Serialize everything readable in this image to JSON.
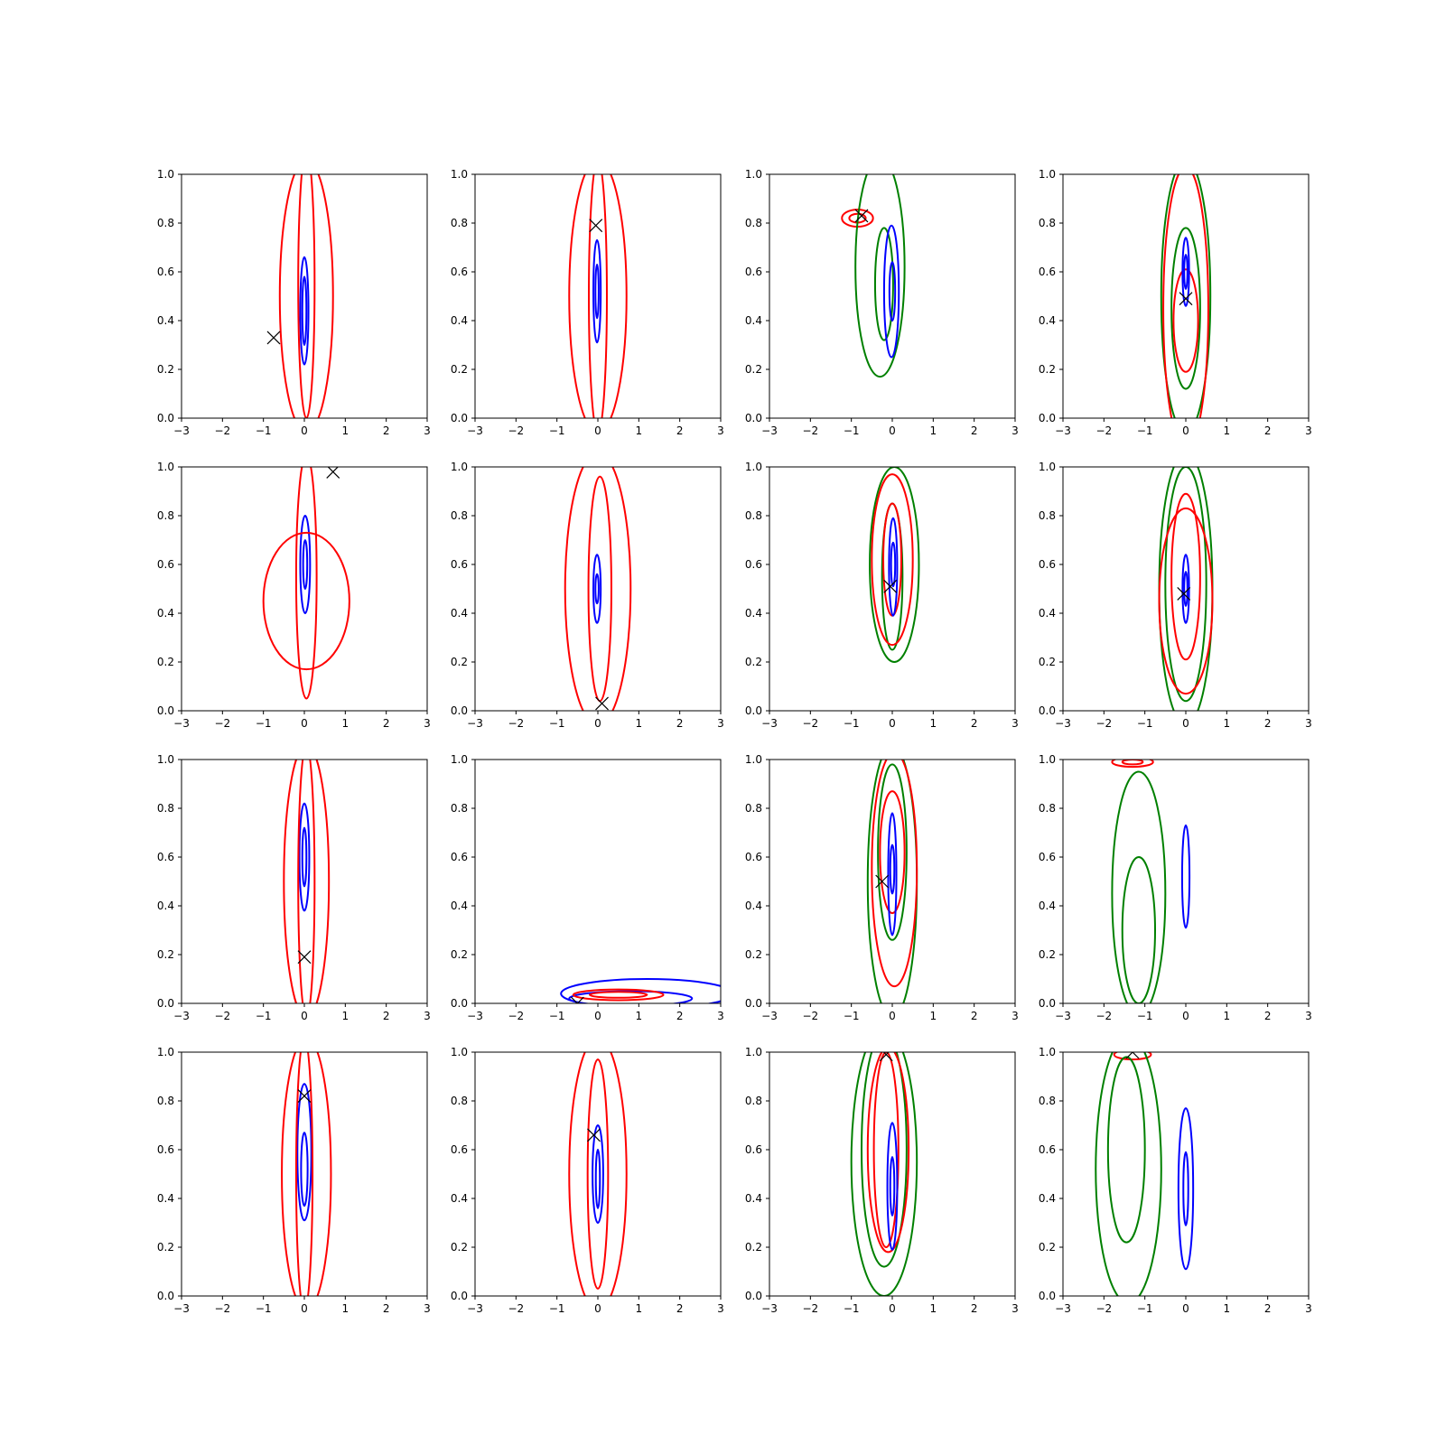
{
  "figure": {
    "rows": 4,
    "cols": 4,
    "series_colors": {
      "blue": "#0000ff",
      "red": "#ff0000",
      "green": "#008000",
      "marker": "#000000"
    }
  },
  "chart_data": {
    "type": "contour",
    "xlim": [
      -3,
      3
    ],
    "ylim": [
      0,
      1
    ],
    "xticks": [
      -3,
      -2,
      -1,
      0,
      1,
      2,
      3
    ],
    "xtick_labels": [
      "−3",
      "−2",
      "−1",
      "0",
      "1",
      "2",
      "3"
    ],
    "yticks": [
      0,
      0.2,
      0.4,
      0.6,
      0.8,
      1.0
    ],
    "ytick_labels": [
      "0.0",
      "0.2",
      "0.4",
      "0.6",
      "0.8",
      "1.0"
    ],
    "grid": false,
    "panels": [
      {
        "marker": [
          -0.75,
          0.33
        ],
        "contours": [
          {
            "color": "blue",
            "cx": 0.0,
            "cy": 0.44,
            "rx": 0.1,
            "ry": 0.22
          },
          {
            "color": "blue",
            "cx": 0.0,
            "cy": 0.44,
            "rx": 0.05,
            "ry": 0.14
          },
          {
            "color": "red",
            "cx": 0.05,
            "cy": 0.5,
            "rx": 0.65,
            "ry": 0.56
          },
          {
            "color": "red",
            "cx": 0.05,
            "cy": 0.55,
            "rx": 0.2,
            "ry": 0.55
          }
        ]
      },
      {
        "marker": [
          -0.05,
          0.79
        ],
        "contours": [
          {
            "color": "blue",
            "cx": -0.02,
            "cy": 0.52,
            "rx": 0.09,
            "ry": 0.21
          },
          {
            "color": "blue",
            "cx": -0.02,
            "cy": 0.52,
            "rx": 0.04,
            "ry": 0.11
          },
          {
            "color": "red",
            "cx": 0.0,
            "cy": 0.5,
            "rx": 0.7,
            "ry": 0.56
          },
          {
            "color": "red",
            "cx": 0.0,
            "cy": 0.5,
            "rx": 0.22,
            "ry": 0.56
          }
        ]
      },
      {
        "marker": [
          -0.75,
          0.83
        ],
        "contours": [
          {
            "color": "red",
            "cx": -0.85,
            "cy": 0.82,
            "rx": 0.38,
            "ry": 0.035
          },
          {
            "color": "red",
            "cx": -0.85,
            "cy": 0.82,
            "rx": 0.2,
            "ry": 0.018
          },
          {
            "color": "green",
            "cx": -0.3,
            "cy": 0.62,
            "rx": 0.6,
            "ry": 0.45
          },
          {
            "color": "green",
            "cx": -0.2,
            "cy": 0.55,
            "rx": 0.22,
            "ry": 0.23
          },
          {
            "color": "blue",
            "cx": -0.02,
            "cy": 0.52,
            "rx": 0.18,
            "ry": 0.27
          },
          {
            "color": "blue",
            "cx": 0.0,
            "cy": 0.52,
            "rx": 0.07,
            "ry": 0.12
          }
        ]
      },
      {
        "marker": [
          0.0,
          0.49
        ],
        "contours": [
          {
            "color": "green",
            "cx": 0.0,
            "cy": 0.5,
            "rx": 0.6,
            "ry": 0.56
          },
          {
            "color": "green",
            "cx": 0.0,
            "cy": 0.45,
            "rx": 0.35,
            "ry": 0.33
          },
          {
            "color": "red",
            "cx": 0.0,
            "cy": 0.45,
            "rx": 0.55,
            "ry": 0.58
          },
          {
            "color": "red",
            "cx": 0.0,
            "cy": 0.4,
            "rx": 0.3,
            "ry": 0.21
          },
          {
            "color": "blue",
            "cx": 0.0,
            "cy": 0.6,
            "rx": 0.08,
            "ry": 0.14
          },
          {
            "color": "blue",
            "cx": 0.0,
            "cy": 0.6,
            "rx": 0.04,
            "ry": 0.07
          }
        ]
      },
      {
        "marker": [
          0.7,
          0.98
        ],
        "contours": [
          {
            "color": "blue",
            "cx": 0.02,
            "cy": 0.6,
            "rx": 0.12,
            "ry": 0.2
          },
          {
            "color": "blue",
            "cx": 0.02,
            "cy": 0.6,
            "rx": 0.05,
            "ry": 0.1
          },
          {
            "color": "red",
            "cx": 0.05,
            "cy": 0.45,
            "rx": 1.05,
            "ry": 0.28
          },
          {
            "color": "red",
            "cx": 0.05,
            "cy": 0.55,
            "rx": 0.25,
            "ry": 0.5
          }
        ]
      },
      {
        "marker": [
          0.1,
          0.03
        ],
        "contours": [
          {
            "color": "blue",
            "cx": -0.02,
            "cy": 0.5,
            "rx": 0.09,
            "ry": 0.14
          },
          {
            "color": "blue",
            "cx": -0.02,
            "cy": 0.5,
            "rx": 0.04,
            "ry": 0.06
          },
          {
            "color": "red",
            "cx": 0.0,
            "cy": 0.5,
            "rx": 0.8,
            "ry": 0.56
          },
          {
            "color": "red",
            "cx": 0.05,
            "cy": 0.5,
            "rx": 0.28,
            "ry": 0.46
          }
        ]
      },
      {
        "marker": [
          -0.05,
          0.51
        ],
        "contours": [
          {
            "color": "green",
            "cx": 0.05,
            "cy": 0.6,
            "rx": 0.6,
            "ry": 0.4
          },
          {
            "color": "green",
            "cx": 0.0,
            "cy": 0.55,
            "rx": 0.25,
            "ry": 0.3
          },
          {
            "color": "red",
            "cx": 0.0,
            "cy": 0.62,
            "rx": 0.5,
            "ry": 0.35
          },
          {
            "color": "red",
            "cx": 0.0,
            "cy": 0.62,
            "rx": 0.22,
            "ry": 0.23
          },
          {
            "color": "blue",
            "cx": 0.02,
            "cy": 0.59,
            "rx": 0.1,
            "ry": 0.2
          },
          {
            "color": "blue",
            "cx": 0.02,
            "cy": 0.6,
            "rx": 0.05,
            "ry": 0.09
          }
        ]
      },
      {
        "marker": [
          -0.05,
          0.48
        ],
        "contours": [
          {
            "color": "green",
            "cx": 0.0,
            "cy": 0.5,
            "rx": 0.65,
            "ry": 0.56
          },
          {
            "color": "green",
            "cx": 0.0,
            "cy": 0.52,
            "rx": 0.5,
            "ry": 0.48
          },
          {
            "color": "red",
            "cx": 0.0,
            "cy": 0.45,
            "rx": 0.65,
            "ry": 0.38
          },
          {
            "color": "red",
            "cx": 0.0,
            "cy": 0.55,
            "rx": 0.35,
            "ry": 0.34
          },
          {
            "color": "blue",
            "cx": 0.0,
            "cy": 0.5,
            "rx": 0.08,
            "ry": 0.14
          },
          {
            "color": "blue",
            "cx": 0.0,
            "cy": 0.5,
            "rx": 0.04,
            "ry": 0.07
          }
        ]
      },
      {
        "marker": [
          0.0,
          0.19
        ],
        "contours": [
          {
            "color": "blue",
            "cx": 0.0,
            "cy": 0.6,
            "rx": 0.12,
            "ry": 0.22
          },
          {
            "color": "blue",
            "cx": 0.0,
            "cy": 0.6,
            "rx": 0.05,
            "ry": 0.12
          },
          {
            "color": "red",
            "cx": 0.05,
            "cy": 0.5,
            "rx": 0.55,
            "ry": 0.56
          },
          {
            "color": "red",
            "cx": 0.05,
            "cy": 0.5,
            "rx": 0.2,
            "ry": 0.56
          }
        ]
      },
      {
        "marker": [
          -0.5,
          0.0
        ],
        "contours": [
          {
            "color": "blue",
            "cx": 1.2,
            "cy": 0.04,
            "rx": 2.1,
            "ry": 0.06
          },
          {
            "color": "blue",
            "cx": 0.8,
            "cy": 0.02,
            "rx": 1.5,
            "ry": 0.03
          },
          {
            "color": "red",
            "cx": 0.5,
            "cy": 0.035,
            "rx": 1.1,
            "ry": 0.022
          },
          {
            "color": "red",
            "cx": 0.5,
            "cy": 0.035,
            "rx": 0.7,
            "ry": 0.012
          }
        ]
      },
      {
        "marker": [
          -0.25,
          0.5
        ],
        "contours": [
          {
            "color": "green",
            "cx": 0.0,
            "cy": 0.5,
            "rx": 0.6,
            "ry": 0.56
          },
          {
            "color": "green",
            "cx": 0.0,
            "cy": 0.62,
            "rx": 0.35,
            "ry": 0.36
          },
          {
            "color": "red",
            "cx": 0.05,
            "cy": 0.55,
            "rx": 0.55,
            "ry": 0.48
          },
          {
            "color": "red",
            "cx": 0.0,
            "cy": 0.62,
            "rx": 0.3,
            "ry": 0.25
          },
          {
            "color": "blue",
            "cx": 0.0,
            "cy": 0.53,
            "rx": 0.1,
            "ry": 0.25
          },
          {
            "color": "blue",
            "cx": 0.0,
            "cy": 0.55,
            "rx": 0.05,
            "ry": 0.1
          }
        ]
      },
      {
        "marker": null,
        "contours": [
          {
            "color": "red",
            "cx": -1.3,
            "cy": 0.99,
            "rx": 0.5,
            "ry": 0.02
          },
          {
            "color": "red",
            "cx": -1.3,
            "cy": 0.99,
            "rx": 0.25,
            "ry": 0.01
          },
          {
            "color": "green",
            "cx": -1.15,
            "cy": 0.45,
            "rx": 0.65,
            "ry": 0.5
          },
          {
            "color": "green",
            "cx": -1.15,
            "cy": 0.3,
            "rx": 0.4,
            "ry": 0.3
          },
          {
            "color": "blue",
            "cx": 0.0,
            "cy": 0.52,
            "rx": 0.09,
            "ry": 0.21
          }
        ]
      },
      {
        "marker": [
          0.0,
          0.82
        ],
        "contours": [
          {
            "color": "blue",
            "cx": 0.0,
            "cy": 0.59,
            "rx": 0.17,
            "ry": 0.28
          },
          {
            "color": "blue",
            "cx": 0.0,
            "cy": 0.52,
            "rx": 0.08,
            "ry": 0.15
          },
          {
            "color": "red",
            "cx": 0.05,
            "cy": 0.5,
            "rx": 0.6,
            "ry": 0.56
          },
          {
            "color": "red",
            "cx": 0.0,
            "cy": 0.5,
            "rx": 0.2,
            "ry": 0.56
          }
        ]
      },
      {
        "marker": [
          -0.1,
          0.66
        ],
        "contours": [
          {
            "color": "blue",
            "cx": 0.0,
            "cy": 0.5,
            "rx": 0.13,
            "ry": 0.2
          },
          {
            "color": "blue",
            "cx": 0.0,
            "cy": 0.48,
            "rx": 0.05,
            "ry": 0.12
          },
          {
            "color": "red",
            "cx": 0.0,
            "cy": 0.5,
            "rx": 0.7,
            "ry": 0.56
          },
          {
            "color": "red",
            "cx": 0.0,
            "cy": 0.5,
            "rx": 0.25,
            "ry": 0.47
          }
        ]
      },
      {
        "marker": [
          -0.15,
          0.99
        ],
        "contours": [
          {
            "color": "green",
            "cx": -0.2,
            "cy": 0.55,
            "rx": 0.8,
            "ry": 0.55
          },
          {
            "color": "green",
            "cx": -0.2,
            "cy": 0.6,
            "rx": 0.55,
            "ry": 0.48
          },
          {
            "color": "red",
            "cx": -0.1,
            "cy": 0.6,
            "rx": 0.5,
            "ry": 0.42
          },
          {
            "color": "red",
            "cx": -0.15,
            "cy": 0.6,
            "rx": 0.3,
            "ry": 0.4
          },
          {
            "color": "blue",
            "cx": 0.0,
            "cy": 0.45,
            "rx": 0.12,
            "ry": 0.26
          },
          {
            "color": "blue",
            "cx": 0.0,
            "cy": 0.45,
            "rx": 0.05,
            "ry": 0.12
          }
        ]
      },
      {
        "marker": [
          -1.3,
          1.0
        ],
        "contours": [
          {
            "color": "red",
            "cx": -1.3,
            "cy": 0.99,
            "rx": 0.45,
            "ry": 0.02
          },
          {
            "color": "green",
            "cx": -1.4,
            "cy": 0.52,
            "rx": 0.8,
            "ry": 0.55
          },
          {
            "color": "green",
            "cx": -1.45,
            "cy": 0.6,
            "rx": 0.45,
            "ry": 0.38
          },
          {
            "color": "blue",
            "cx": 0.0,
            "cy": 0.44,
            "rx": 0.18,
            "ry": 0.33
          },
          {
            "color": "blue",
            "cx": 0.0,
            "cy": 0.44,
            "rx": 0.06,
            "ry": 0.15
          }
        ]
      }
    ]
  }
}
